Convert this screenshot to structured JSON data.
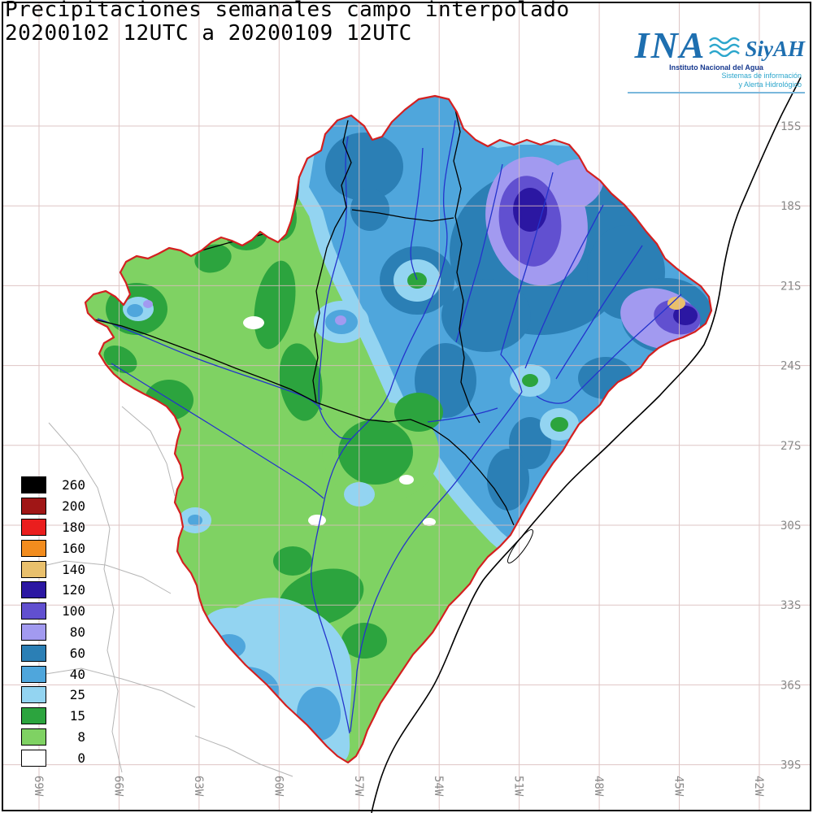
{
  "header": {
    "title_line1": "Precipitaciones semanales campo interpolado",
    "title_line2": "20200102 12UTC a 20200109 12UTC"
  },
  "logo": {
    "ina": "INA",
    "siyah": "SiyAH",
    "subtitle1": "Instituto Nacional del Agua",
    "subtitle2": "Sistemas de información",
    "subtitle3": "y Alerta Hidrológico"
  },
  "legend": {
    "entries": [
      {
        "label": "260",
        "color_key": "black260"
      },
      {
        "label": "200",
        "color_key": "darkred200"
      },
      {
        "label": "180",
        "color_key": "red180"
      },
      {
        "label": "160",
        "color_key": "orange160"
      },
      {
        "label": "140",
        "color_key": "tan140"
      },
      {
        "label": "120",
        "color_key": "purple120"
      },
      {
        "label": "100",
        "color_key": "purple100"
      },
      {
        "label": "80",
        "color_key": "purple80"
      },
      {
        "label": "60",
        "color_key": "blue60"
      },
      {
        "label": "40",
        "color_key": "blue40"
      },
      {
        "label": "25",
        "color_key": "blue25"
      },
      {
        "label": "15",
        "color_key": "green15"
      },
      {
        "label": "8",
        "color_key": "green8"
      },
      {
        "label": "0",
        "color_key": "white0"
      }
    ]
  },
  "axes": {
    "latitudes": [
      "15S",
      "18S",
      "21S",
      "24S",
      "27S",
      "30S",
      "33S",
      "36S",
      "39S"
    ],
    "longitudes": [
      "69W",
      "66W",
      "63W",
      "60W",
      "57W",
      "54W",
      "51W",
      "48W",
      "45W",
      "42W"
    ]
  },
  "palette": {
    "black260": "#000000",
    "darkred200": "#a01616",
    "red180": "#ea1e1e",
    "orange160": "#f28c1e",
    "tan140": "#e9c06c",
    "purple120": "#2b17a2",
    "purple100": "#6150d0",
    "purple80": "#a29af0",
    "blue60": "#2b7fb5",
    "blue40": "#4fa6dc",
    "blue25": "#93d4f1",
    "green15": "#2ca43e",
    "green8": "#7fd263",
    "white0": "#ffffff",
    "grid": "#d9bcbc",
    "river": "#2433cc",
    "border": "#000000",
    "basin_outline": "#d42020",
    "coast": "#000000",
    "admin": "#b5b5b5",
    "axis_label": "#8a8a8a"
  }
}
